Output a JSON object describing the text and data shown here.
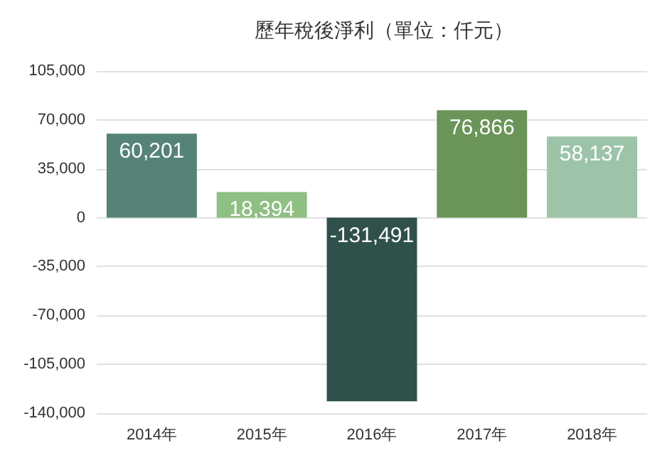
{
  "chart_data": {
    "type": "bar",
    "title": "歷年稅後淨利（單位：仟元）",
    "categories": [
      "2014年",
      "2015年",
      "2016年",
      "2017年",
      "2018年"
    ],
    "values": [
      60201,
      18394,
      -131491,
      76866,
      58137
    ],
    "value_labels": [
      "60,201",
      "18,394",
      "-131,491",
      "76,866",
      "58,137"
    ],
    "colors": [
      "#568377",
      "#8fbf83",
      "#30504b",
      "#6b9458",
      "#9cc4a9"
    ],
    "ylim": [
      -140000,
      105000
    ],
    "yticks": [
      {
        "value": -140000,
        "label": "-140,000"
      },
      {
        "value": -105000,
        "label": "-105,000"
      },
      {
        "value": -70000,
        "label": "-70,000"
      },
      {
        "value": -35000,
        "label": "-35,000"
      },
      0,
      {
        "value": 35000,
        "label": "35,000"
      },
      {
        "value": 70000,
        "label": "70,000"
      },
      {
        "value": 105000,
        "label": "105,000"
      }
    ],
    "grid": "y"
  }
}
